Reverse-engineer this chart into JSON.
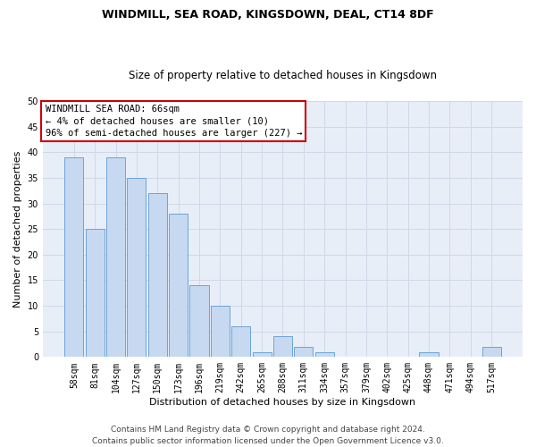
{
  "title1": "WINDMILL, SEA ROAD, KINGSDOWN, DEAL, CT14 8DF",
  "title2": "Size of property relative to detached houses in Kingsdown",
  "xlabel": "Distribution of detached houses by size in Kingsdown",
  "ylabel": "Number of detached properties",
  "categories": [
    "58sqm",
    "81sqm",
    "104sqm",
    "127sqm",
    "150sqm",
    "173sqm",
    "196sqm",
    "219sqm",
    "242sqm",
    "265sqm",
    "288sqm",
    "311sqm",
    "334sqm",
    "357sqm",
    "379sqm",
    "402sqm",
    "425sqm",
    "448sqm",
    "471sqm",
    "494sqm",
    "517sqm"
  ],
  "values": [
    39,
    25,
    39,
    35,
    32,
    28,
    14,
    10,
    6,
    1,
    4,
    2,
    1,
    0,
    0,
    0,
    0,
    1,
    0,
    0,
    2
  ],
  "bar_color": "#c6d9f0",
  "bar_edge_color": "#5b9bd5",
  "annotation_box_text": "WINDMILL SEA ROAD: 66sqm\n← 4% of detached houses are smaller (10)\n96% of semi-detached houses are larger (227) →",
  "annotation_box_color": "#ffffff",
  "annotation_box_edge_color": "#cc0000",
  "ylim": [
    0,
    50
  ],
  "yticks": [
    0,
    5,
    10,
    15,
    20,
    25,
    30,
    35,
    40,
    45,
    50
  ],
  "grid_color": "#d0d8e8",
  "bg_color": "#e8eef8",
  "footer_text": "Contains HM Land Registry data © Crown copyright and database right 2024.\nContains public sector information licensed under the Open Government Licence v3.0.",
  "title1_fontsize": 9,
  "title2_fontsize": 8.5,
  "xlabel_fontsize": 8,
  "ylabel_fontsize": 8,
  "tick_fontsize": 7,
  "annotation_fontsize": 7.5,
  "footer_fontsize": 6.5
}
